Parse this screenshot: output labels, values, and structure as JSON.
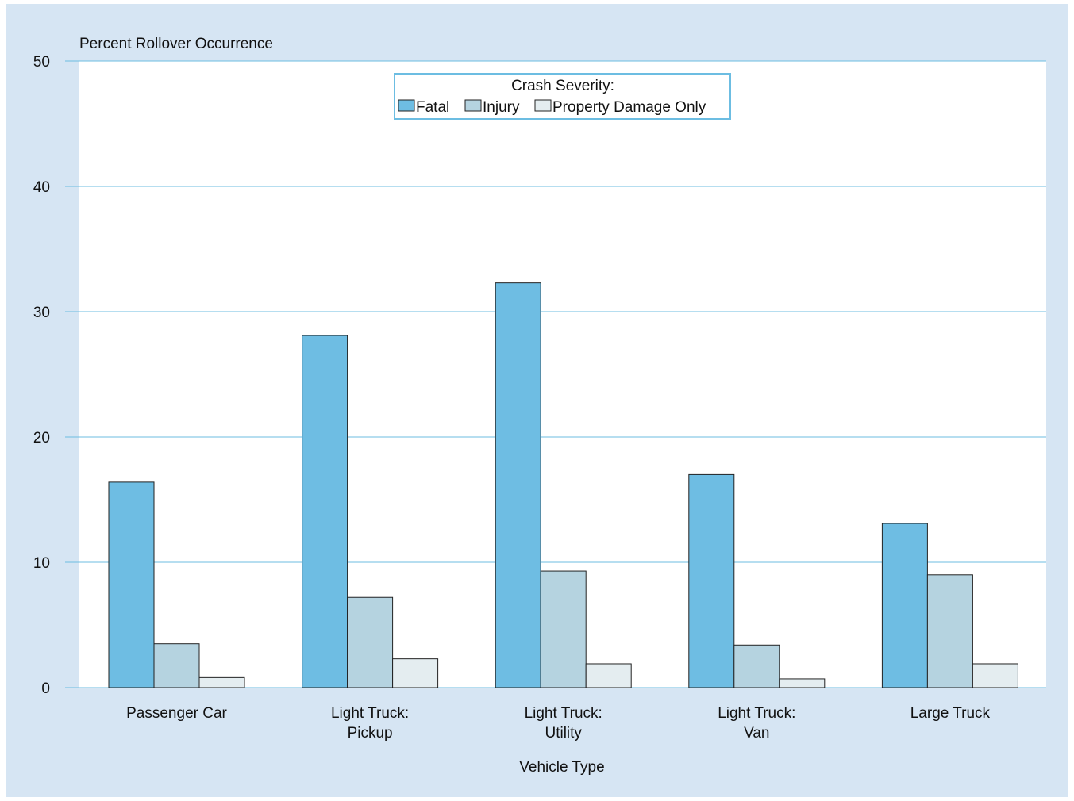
{
  "chart_data": {
    "type": "bar",
    "title": "",
    "ylabel": "Percent Rollover Occurrence",
    "xlabel": "Vehicle Type",
    "ylim": [
      0,
      50
    ],
    "yticks": [
      0,
      10,
      20,
      30,
      40,
      50
    ],
    "grid": true,
    "legend_title": "Crash Severity:",
    "legend_position": "top-center",
    "categories": [
      [
        "Passenger Car"
      ],
      [
        "Light Truck:",
        "Pickup"
      ],
      [
        "Light Truck:",
        "Utility"
      ],
      [
        "Light Truck:",
        "Van"
      ],
      [
        "Large Truck"
      ]
    ],
    "series": [
      {
        "name": "Fatal",
        "color": "#6ebde3",
        "values": [
          16.4,
          28.1,
          32.3,
          17.0,
          13.1
        ]
      },
      {
        "name": "Injury",
        "color": "#b5d3e0",
        "values": [
          3.5,
          7.2,
          9.3,
          3.4,
          9.0
        ]
      },
      {
        "name": "Property Damage Only",
        "color": "#e4edf0",
        "values": [
          0.8,
          2.3,
          1.9,
          0.7,
          1.9
        ]
      }
    ]
  },
  "colors": {
    "background": "#d6e5f3",
    "plot_area": "#ffffff",
    "gridline": "#6cbde2",
    "legend_border": "#6cbde2"
  }
}
